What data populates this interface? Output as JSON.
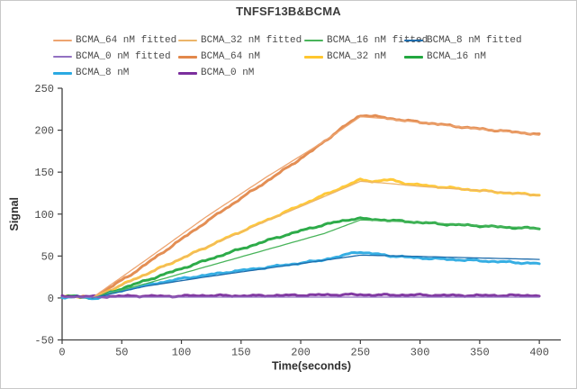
{
  "window": {
    "title": "TNFSF13B&BCMA"
  },
  "chart_data": {
    "type": "line",
    "title": "TNFSF13B&BCMA",
    "xlabel": "Time(seconds)",
    "ylabel": "Signal",
    "xlim": [
      0,
      418
    ],
    "ylim": [
      -50,
      250
    ],
    "xticks": [
      0,
      50,
      100,
      150,
      200,
      250,
      300,
      350,
      400
    ],
    "yticks": [
      -50,
      0,
      50,
      100,
      150,
      200,
      250
    ],
    "grid": false,
    "legend_position": "top",
    "axis_color": "#3f3f3f",
    "series": [
      {
        "name": "BCMA_64 nM fitted",
        "style": "fitted",
        "color": "#EDA470",
        "points": [
          [
            25,
            0
          ],
          [
            70,
            45
          ],
          [
            120,
            96
          ],
          [
            170,
            143
          ],
          [
            220,
            187
          ],
          [
            250,
            216
          ],
          [
            270,
            214
          ],
          [
            300,
            209
          ],
          [
            340,
            203
          ],
          [
            370,
            199
          ],
          [
            400,
            194
          ]
        ]
      },
      {
        "name": "BCMA_32 nM fitted",
        "style": "fitted",
        "color": "#ECB56A",
        "points": [
          [
            25,
            0
          ],
          [
            70,
            28
          ],
          [
            120,
            60
          ],
          [
            170,
            91
          ],
          [
            220,
            121
          ],
          [
            250,
            139
          ],
          [
            270,
            137
          ],
          [
            300,
            133
          ],
          [
            340,
            129
          ],
          [
            370,
            126
          ],
          [
            400,
            122
          ]
        ]
      },
      {
        "name": "BCMA_16 nM fitted",
        "style": "fitted",
        "color": "#49B45B",
        "points": [
          [
            25,
            0
          ],
          [
            70,
            17
          ],
          [
            120,
            37
          ],
          [
            170,
            57
          ],
          [
            220,
            77
          ],
          [
            250,
            93
          ],
          [
            270,
            92
          ],
          [
            300,
            90
          ],
          [
            340,
            87
          ],
          [
            370,
            85
          ],
          [
            400,
            83
          ]
        ]
      },
      {
        "name": "BCMA_8 nM fitted",
        "style": "fitted",
        "color": "#1F6CAB",
        "points": [
          [
            25,
            0
          ],
          [
            70,
            14
          ],
          [
            120,
            25
          ],
          [
            170,
            35
          ],
          [
            220,
            45
          ],
          [
            250,
            51
          ],
          [
            270,
            50.5
          ],
          [
            300,
            49.5
          ],
          [
            340,
            48
          ],
          [
            370,
            47
          ],
          [
            400,
            46
          ]
        ]
      },
      {
        "name": "BCMA_0 nM fitted",
        "style": "fitted",
        "color": "#9271C1",
        "points": [
          [
            0,
            1
          ],
          [
            100,
            1
          ],
          [
            200,
            1
          ],
          [
            300,
            1
          ],
          [
            400,
            1
          ]
        ]
      },
      {
        "name": "BCMA_64 nM",
        "style": "data",
        "color": "#E2884B",
        "points": [
          [
            0,
            1.5
          ],
          [
            10,
            2
          ],
          [
            20,
            1
          ],
          [
            26,
            -1.5
          ],
          [
            35,
            8
          ],
          [
            60,
            30
          ],
          [
            90,
            60
          ],
          [
            120,
            90
          ],
          [
            150,
            119
          ],
          [
            180,
            147
          ],
          [
            210,
            176
          ],
          [
            235,
            203
          ],
          [
            248,
            216
          ],
          [
            252,
            218
          ],
          [
            265,
            216
          ],
          [
            285,
            212
          ],
          [
            310,
            208
          ],
          [
            340,
            203
          ],
          [
            370,
            199
          ],
          [
            400,
            195
          ]
        ]
      },
      {
        "name": "BCMA_32 nM",
        "style": "data",
        "color": "#FFC62E",
        "points": [
          [
            0,
            1.5
          ],
          [
            12,
            2
          ],
          [
            20,
            1
          ],
          [
            26,
            -1.5
          ],
          [
            35,
            6
          ],
          [
            60,
            22
          ],
          [
            100,
            47
          ],
          [
            140,
            73
          ],
          [
            180,
            98
          ],
          [
            215,
            120
          ],
          [
            240,
            135
          ],
          [
            250,
            141
          ],
          [
            262,
            139
          ],
          [
            275,
            141
          ],
          [
            290,
            136
          ],
          [
            320,
            132
          ],
          [
            350,
            128
          ],
          [
            375,
            125
          ],
          [
            400,
            123
          ]
        ]
      },
      {
        "name": "BCMA_16 nM",
        "style": "data",
        "color": "#22A73F",
        "points": [
          [
            0,
            1.5
          ],
          [
            12,
            2
          ],
          [
            20,
            1
          ],
          [
            26,
            -1
          ],
          [
            35,
            4
          ],
          [
            60,
            16
          ],
          [
            100,
            35
          ],
          [
            140,
            54
          ],
          [
            180,
            72
          ],
          [
            210,
            84
          ],
          [
            222,
            88
          ],
          [
            235,
            92
          ],
          [
            248,
            95
          ],
          [
            255,
            94
          ],
          [
            270,
            93
          ],
          [
            290,
            91
          ],
          [
            320,
            88
          ],
          [
            350,
            86
          ],
          [
            375,
            84
          ],
          [
            400,
            83
          ]
        ]
      },
      {
        "name": "BCMA_8 nM",
        "style": "data",
        "color": "#2BAAE2",
        "points": [
          [
            0,
            1
          ],
          [
            12,
            1.5
          ],
          [
            20,
            0.5
          ],
          [
            26,
            -1.5
          ],
          [
            35,
            3
          ],
          [
            62,
            13
          ],
          [
            100,
            23
          ],
          [
            140,
            31
          ],
          [
            180,
            38
          ],
          [
            213,
            44
          ],
          [
            235,
            50
          ],
          [
            245,
            55
          ],
          [
            252,
            54
          ],
          [
            265,
            52
          ],
          [
            285,
            49
          ],
          [
            310,
            47
          ],
          [
            340,
            45
          ],
          [
            370,
            43
          ],
          [
            400,
            41
          ]
        ]
      },
      {
        "name": "BCMA_0 nM",
        "style": "data",
        "color": "#7B2F9D",
        "points": [
          [
            0,
            2
          ],
          [
            30,
            1.5
          ],
          [
            60,
            2.5
          ],
          [
            90,
            2
          ],
          [
            120,
            3
          ],
          [
            150,
            2.5
          ],
          [
            180,
            3
          ],
          [
            210,
            3.5
          ],
          [
            240,
            4
          ],
          [
            270,
            3.5
          ],
          [
            300,
            3.5
          ],
          [
            330,
            3
          ],
          [
            360,
            3
          ],
          [
            400,
            3
          ]
        ]
      }
    ]
  }
}
